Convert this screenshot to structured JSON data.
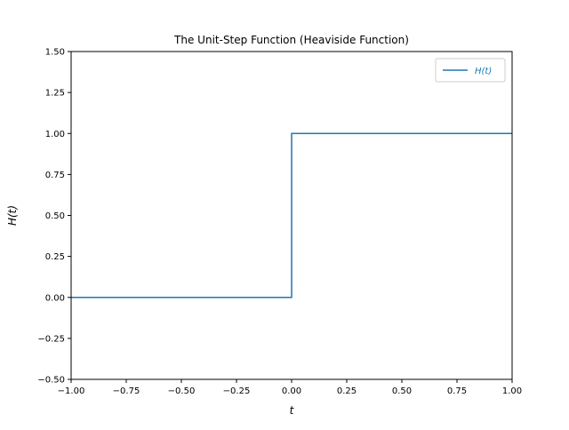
{
  "chart_data": {
    "type": "line",
    "title": "The Unit-Step Function (Heaviside Function)",
    "xlabel": "t",
    "ylabel": "H(t)",
    "xlim": [
      -1.0,
      1.0
    ],
    "ylim": [
      -0.5,
      1.5
    ],
    "x_ticks": [
      "−1.00",
      "−0.75",
      "−0.50",
      "−0.25",
      "0.00",
      "0.25",
      "0.50",
      "0.75",
      "1.00"
    ],
    "x_tick_values": [
      -1.0,
      -0.75,
      -0.5,
      -0.25,
      0.0,
      0.25,
      0.5,
      0.75,
      1.0
    ],
    "y_ticks": [
      "−0.50",
      "−0.25",
      "0.00",
      "0.25",
      "0.50",
      "0.75",
      "1.00",
      "1.25",
      "1.50"
    ],
    "y_tick_values": [
      -0.5,
      -0.25,
      0.0,
      0.25,
      0.5,
      0.75,
      1.0,
      1.25,
      1.5
    ],
    "grid": false,
    "legend_position": "top-right",
    "series": [
      {
        "name": "H(t)",
        "color": "#1f77b4",
        "x": [
          -1.0,
          0.0,
          0.0,
          1.0
        ],
        "y": [
          0.0,
          0.0,
          1.0,
          1.0
        ]
      }
    ]
  }
}
